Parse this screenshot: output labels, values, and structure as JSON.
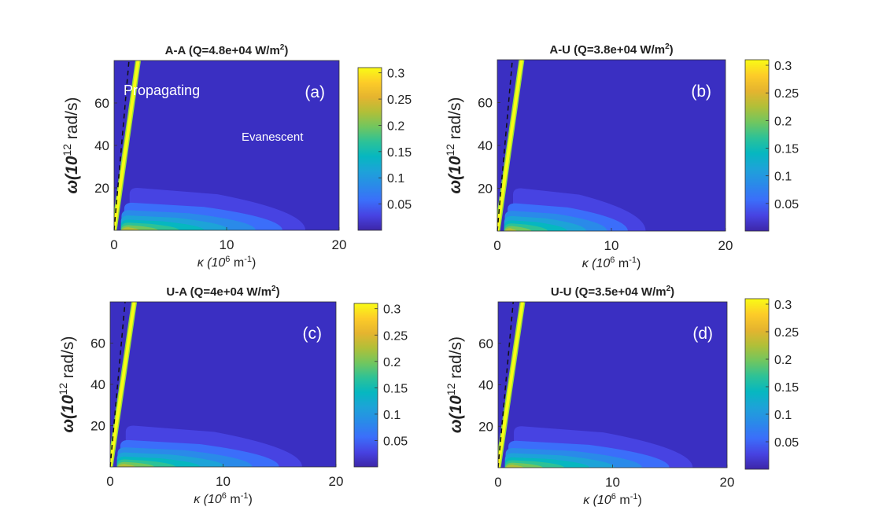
{
  "colors": {
    "background": "#3a2fc2",
    "viridis": [
      "#3d26a8",
      "#4743e2",
      "#3b6efa",
      "#2a8ae9",
      "#1da3d8",
      "#06b7c0",
      "#2dc297",
      "#71c65f",
      "#b1bf38",
      "#e5b42f",
      "#fdcc28",
      "#f9fb15"
    ],
    "line": "#f9fb15",
    "dashed": "#111111"
  },
  "chart_data": [
    {
      "id": "a",
      "type": "heatmap",
      "title_main": "A-A  (Q=4.8e+04  W/m",
      "title_sup": "2",
      "title_end": ")",
      "panel_label": "(a)",
      "annotations": {
        "left": "Propagating",
        "right": "Evanescent"
      },
      "ylabel_main": "ω(10",
      "ylabel_sup": "12",
      "ylabel_end": "  rad/s)",
      "xlabel_main": "κ  (10",
      "xlabel_sup": "6",
      "xlabel_mid": "  m",
      "xlabel_sup2": "-1",
      "xlabel_end": ")",
      "xlim": [
        0,
        20
      ],
      "ylim": [
        0,
        80
      ],
      "xticks": [
        "0",
        "10",
        "20"
      ],
      "xtick_values": [
        0,
        10,
        20
      ],
      "yticks": [
        "20",
        "40",
        "60"
      ],
      "ytick_values": [
        20,
        40,
        60
      ],
      "colorbar_ticks": [
        "0.05",
        "0.1",
        "0.15",
        "0.2",
        "0.25",
        "0.3"
      ],
      "colorbar_values": [
        0.05,
        0.1,
        0.15,
        0.2,
        0.25,
        0.3
      ],
      "colorbar_range": [
        0,
        0.31
      ],
      "light_line_slope": 0.75,
      "dashed_line_slope": 0.5,
      "max_kappa_at_low_freq": 17
    },
    {
      "id": "b",
      "type": "heatmap",
      "title_main": "A-U  (Q=3.8e+04  W/m",
      "title_sup": "2",
      "title_end": ")",
      "panel_label": "(b)",
      "ylabel_main": "ω(10",
      "ylabel_sup": "12",
      "ylabel_end": "  rad/s)",
      "xlabel_main": "κ  (10",
      "xlabel_sup": "6",
      "xlabel_mid": "  m",
      "xlabel_sup2": "-1",
      "xlabel_end": ")",
      "xlim": [
        0,
        20
      ],
      "ylim": [
        0,
        80
      ],
      "xticks": [
        "0",
        "10",
        "20"
      ],
      "xtick_values": [
        0,
        10,
        20
      ],
      "yticks": [
        "20",
        "40",
        "60"
      ],
      "ytick_values": [
        20,
        40,
        60
      ],
      "colorbar_ticks": [
        "0.05",
        "0.1",
        "0.15",
        "0.2",
        "0.25",
        "0.3"
      ],
      "colorbar_values": [
        0.05,
        0.1,
        0.15,
        0.2,
        0.25,
        0.3
      ],
      "colorbar_range": [
        0,
        0.31
      ],
      "light_line_slope": 0.75,
      "dashed_line_slope": 0.5,
      "max_kappa_at_low_freq": 13
    },
    {
      "id": "c",
      "type": "heatmap",
      "title_main": "U-A  (Q=4e+04  W/m",
      "title_sup": "2",
      "title_end": ")",
      "panel_label": "(c)",
      "ylabel_main": "ω(10",
      "ylabel_sup": "12",
      "ylabel_end": "  rad/s)",
      "xlabel_main": "κ  (10",
      "xlabel_sup": "6",
      "xlabel_mid": "  m",
      "xlabel_sup2": "-1",
      "xlabel_end": ")",
      "xlim": [
        0,
        20
      ],
      "ylim": [
        0,
        80
      ],
      "xticks": [
        "0",
        "10",
        "20"
      ],
      "xtick_values": [
        0,
        10,
        20
      ],
      "yticks": [
        "20",
        "40",
        "60"
      ],
      "ytick_values": [
        20,
        40,
        60
      ],
      "colorbar_ticks": [
        "0.05",
        "0.1",
        "0.15",
        "0.2",
        "0.25",
        "0.3"
      ],
      "colorbar_values": [
        0.05,
        0.1,
        0.15,
        0.2,
        0.25,
        0.3
      ],
      "colorbar_range": [
        0,
        0.31
      ],
      "light_line_slope": 0.75,
      "dashed_line_slope": 0.5,
      "max_kappa_at_low_freq": 17
    },
    {
      "id": "d",
      "type": "heatmap",
      "title_main": "U-U  (Q=3.5e+04  W/m",
      "title_sup": "2",
      "title_end": ")",
      "panel_label": "(d)",
      "ylabel_main": "ω(10",
      "ylabel_sup": "12",
      "ylabel_end": "  rad/s)",
      "xlabel_main": "κ  (10",
      "xlabel_sup": "6",
      "xlabel_mid": "  m",
      "xlabel_sup2": "-1",
      "xlabel_end": ")",
      "xlim": [
        0,
        20
      ],
      "ylim": [
        0,
        80
      ],
      "xticks": [
        "0",
        "10",
        "20"
      ],
      "xtick_values": [
        0,
        10,
        20
      ],
      "yticks": [
        "20",
        "40",
        "60"
      ],
      "ytick_values": [
        20,
        40,
        60
      ],
      "colorbar_ticks": [
        "0.05",
        "0.1",
        "0.15",
        "0.2",
        "0.25",
        "0.3"
      ],
      "colorbar_values": [
        0.05,
        0.1,
        0.15,
        0.2,
        0.25,
        0.3
      ],
      "colorbar_range": [
        0,
        0.31
      ],
      "light_line_slope": 0.75,
      "dashed_line_slope": 0.5,
      "max_kappa_at_low_freq": 17
    }
  ]
}
